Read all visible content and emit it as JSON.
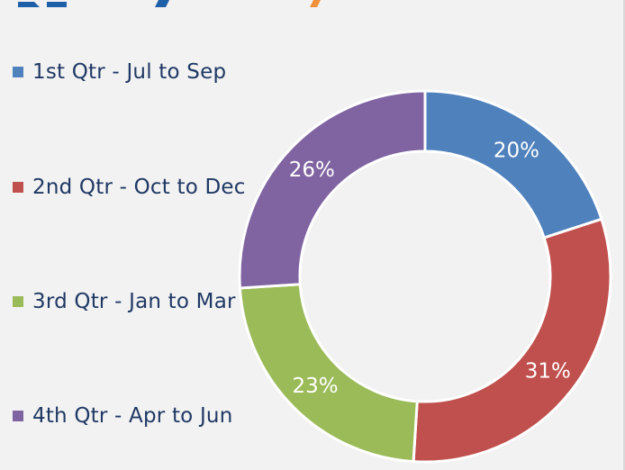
{
  "chart_data": {
    "type": "pie",
    "variant": "donut",
    "title": "",
    "categories": [
      "1st Qtr - Jul to Sep",
      "2nd Qtr - Oct to Dec",
      "3rd Qtr - Jan to Mar",
      "4th Qtr - Apr to Jun"
    ],
    "values": [
      20,
      31,
      23,
      26
    ],
    "data_labels": [
      "20%",
      "31%",
      "23%",
      "26%"
    ],
    "colors": [
      "#4f81bd",
      "#c0504d",
      "#9bbb59",
      "#8064a2"
    ],
    "legend_position": "left"
  }
}
